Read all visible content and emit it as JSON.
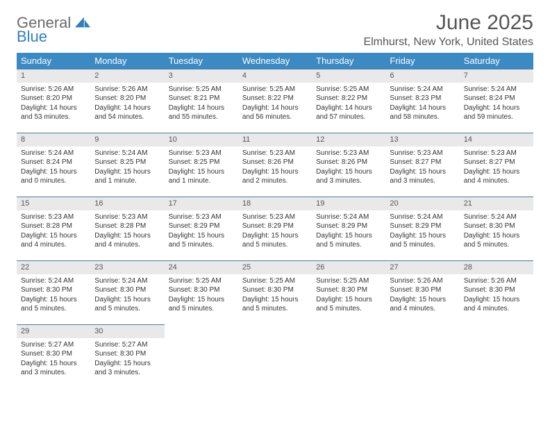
{
  "logo": {
    "text_top": "General",
    "text_bottom": "Blue"
  },
  "title": "June 2025",
  "location": "Elmhurst, New York, United States",
  "colors": {
    "header_bg": "#3b8ac4",
    "header_text": "#ffffff",
    "daynum_bg": "#e9e9e9",
    "daynum_text": "#555555",
    "rule": "#4a7ca8",
    "logo_gray": "#6b6b6b",
    "logo_blue": "#2f7fbf"
  },
  "weekdays": [
    "Sunday",
    "Monday",
    "Tuesday",
    "Wednesday",
    "Thursday",
    "Friday",
    "Saturday"
  ],
  "weeks": [
    [
      {
        "n": "1",
        "sr": "Sunrise: 5:26 AM",
        "ss": "Sunset: 8:20 PM",
        "dl": "Daylight: 14 hours and 53 minutes."
      },
      {
        "n": "2",
        "sr": "Sunrise: 5:26 AM",
        "ss": "Sunset: 8:20 PM",
        "dl": "Daylight: 14 hours and 54 minutes."
      },
      {
        "n": "3",
        "sr": "Sunrise: 5:25 AM",
        "ss": "Sunset: 8:21 PM",
        "dl": "Daylight: 14 hours and 55 minutes."
      },
      {
        "n": "4",
        "sr": "Sunrise: 5:25 AM",
        "ss": "Sunset: 8:22 PM",
        "dl": "Daylight: 14 hours and 56 minutes."
      },
      {
        "n": "5",
        "sr": "Sunrise: 5:25 AM",
        "ss": "Sunset: 8:22 PM",
        "dl": "Daylight: 14 hours and 57 minutes."
      },
      {
        "n": "6",
        "sr": "Sunrise: 5:24 AM",
        "ss": "Sunset: 8:23 PM",
        "dl": "Daylight: 14 hours and 58 minutes."
      },
      {
        "n": "7",
        "sr": "Sunrise: 5:24 AM",
        "ss": "Sunset: 8:24 PM",
        "dl": "Daylight: 14 hours and 59 minutes."
      }
    ],
    [
      {
        "n": "8",
        "sr": "Sunrise: 5:24 AM",
        "ss": "Sunset: 8:24 PM",
        "dl": "Daylight: 15 hours and 0 minutes."
      },
      {
        "n": "9",
        "sr": "Sunrise: 5:24 AM",
        "ss": "Sunset: 8:25 PM",
        "dl": "Daylight: 15 hours and 1 minute."
      },
      {
        "n": "10",
        "sr": "Sunrise: 5:23 AM",
        "ss": "Sunset: 8:25 PM",
        "dl": "Daylight: 15 hours and 1 minute."
      },
      {
        "n": "11",
        "sr": "Sunrise: 5:23 AM",
        "ss": "Sunset: 8:26 PM",
        "dl": "Daylight: 15 hours and 2 minutes."
      },
      {
        "n": "12",
        "sr": "Sunrise: 5:23 AM",
        "ss": "Sunset: 8:26 PM",
        "dl": "Daylight: 15 hours and 3 minutes."
      },
      {
        "n": "13",
        "sr": "Sunrise: 5:23 AM",
        "ss": "Sunset: 8:27 PM",
        "dl": "Daylight: 15 hours and 3 minutes."
      },
      {
        "n": "14",
        "sr": "Sunrise: 5:23 AM",
        "ss": "Sunset: 8:27 PM",
        "dl": "Daylight: 15 hours and 4 minutes."
      }
    ],
    [
      {
        "n": "15",
        "sr": "Sunrise: 5:23 AM",
        "ss": "Sunset: 8:28 PM",
        "dl": "Daylight: 15 hours and 4 minutes."
      },
      {
        "n": "16",
        "sr": "Sunrise: 5:23 AM",
        "ss": "Sunset: 8:28 PM",
        "dl": "Daylight: 15 hours and 4 minutes."
      },
      {
        "n": "17",
        "sr": "Sunrise: 5:23 AM",
        "ss": "Sunset: 8:29 PM",
        "dl": "Daylight: 15 hours and 5 minutes."
      },
      {
        "n": "18",
        "sr": "Sunrise: 5:23 AM",
        "ss": "Sunset: 8:29 PM",
        "dl": "Daylight: 15 hours and 5 minutes."
      },
      {
        "n": "19",
        "sr": "Sunrise: 5:24 AM",
        "ss": "Sunset: 8:29 PM",
        "dl": "Daylight: 15 hours and 5 minutes."
      },
      {
        "n": "20",
        "sr": "Sunrise: 5:24 AM",
        "ss": "Sunset: 8:29 PM",
        "dl": "Daylight: 15 hours and 5 minutes."
      },
      {
        "n": "21",
        "sr": "Sunrise: 5:24 AM",
        "ss": "Sunset: 8:30 PM",
        "dl": "Daylight: 15 hours and 5 minutes."
      }
    ],
    [
      {
        "n": "22",
        "sr": "Sunrise: 5:24 AM",
        "ss": "Sunset: 8:30 PM",
        "dl": "Daylight: 15 hours and 5 minutes."
      },
      {
        "n": "23",
        "sr": "Sunrise: 5:24 AM",
        "ss": "Sunset: 8:30 PM",
        "dl": "Daylight: 15 hours and 5 minutes."
      },
      {
        "n": "24",
        "sr": "Sunrise: 5:25 AM",
        "ss": "Sunset: 8:30 PM",
        "dl": "Daylight: 15 hours and 5 minutes."
      },
      {
        "n": "25",
        "sr": "Sunrise: 5:25 AM",
        "ss": "Sunset: 8:30 PM",
        "dl": "Daylight: 15 hours and 5 minutes."
      },
      {
        "n": "26",
        "sr": "Sunrise: 5:25 AM",
        "ss": "Sunset: 8:30 PM",
        "dl": "Daylight: 15 hours and 5 minutes."
      },
      {
        "n": "27",
        "sr": "Sunrise: 5:26 AM",
        "ss": "Sunset: 8:30 PM",
        "dl": "Daylight: 15 hours and 4 minutes."
      },
      {
        "n": "28",
        "sr": "Sunrise: 5:26 AM",
        "ss": "Sunset: 8:30 PM",
        "dl": "Daylight: 15 hours and 4 minutes."
      }
    ],
    [
      {
        "n": "29",
        "sr": "Sunrise: 5:27 AM",
        "ss": "Sunset: 8:30 PM",
        "dl": "Daylight: 15 hours and 3 minutes."
      },
      {
        "n": "30",
        "sr": "Sunrise: 5:27 AM",
        "ss": "Sunset: 8:30 PM",
        "dl": "Daylight: 15 hours and 3 minutes."
      },
      null,
      null,
      null,
      null,
      null
    ]
  ]
}
